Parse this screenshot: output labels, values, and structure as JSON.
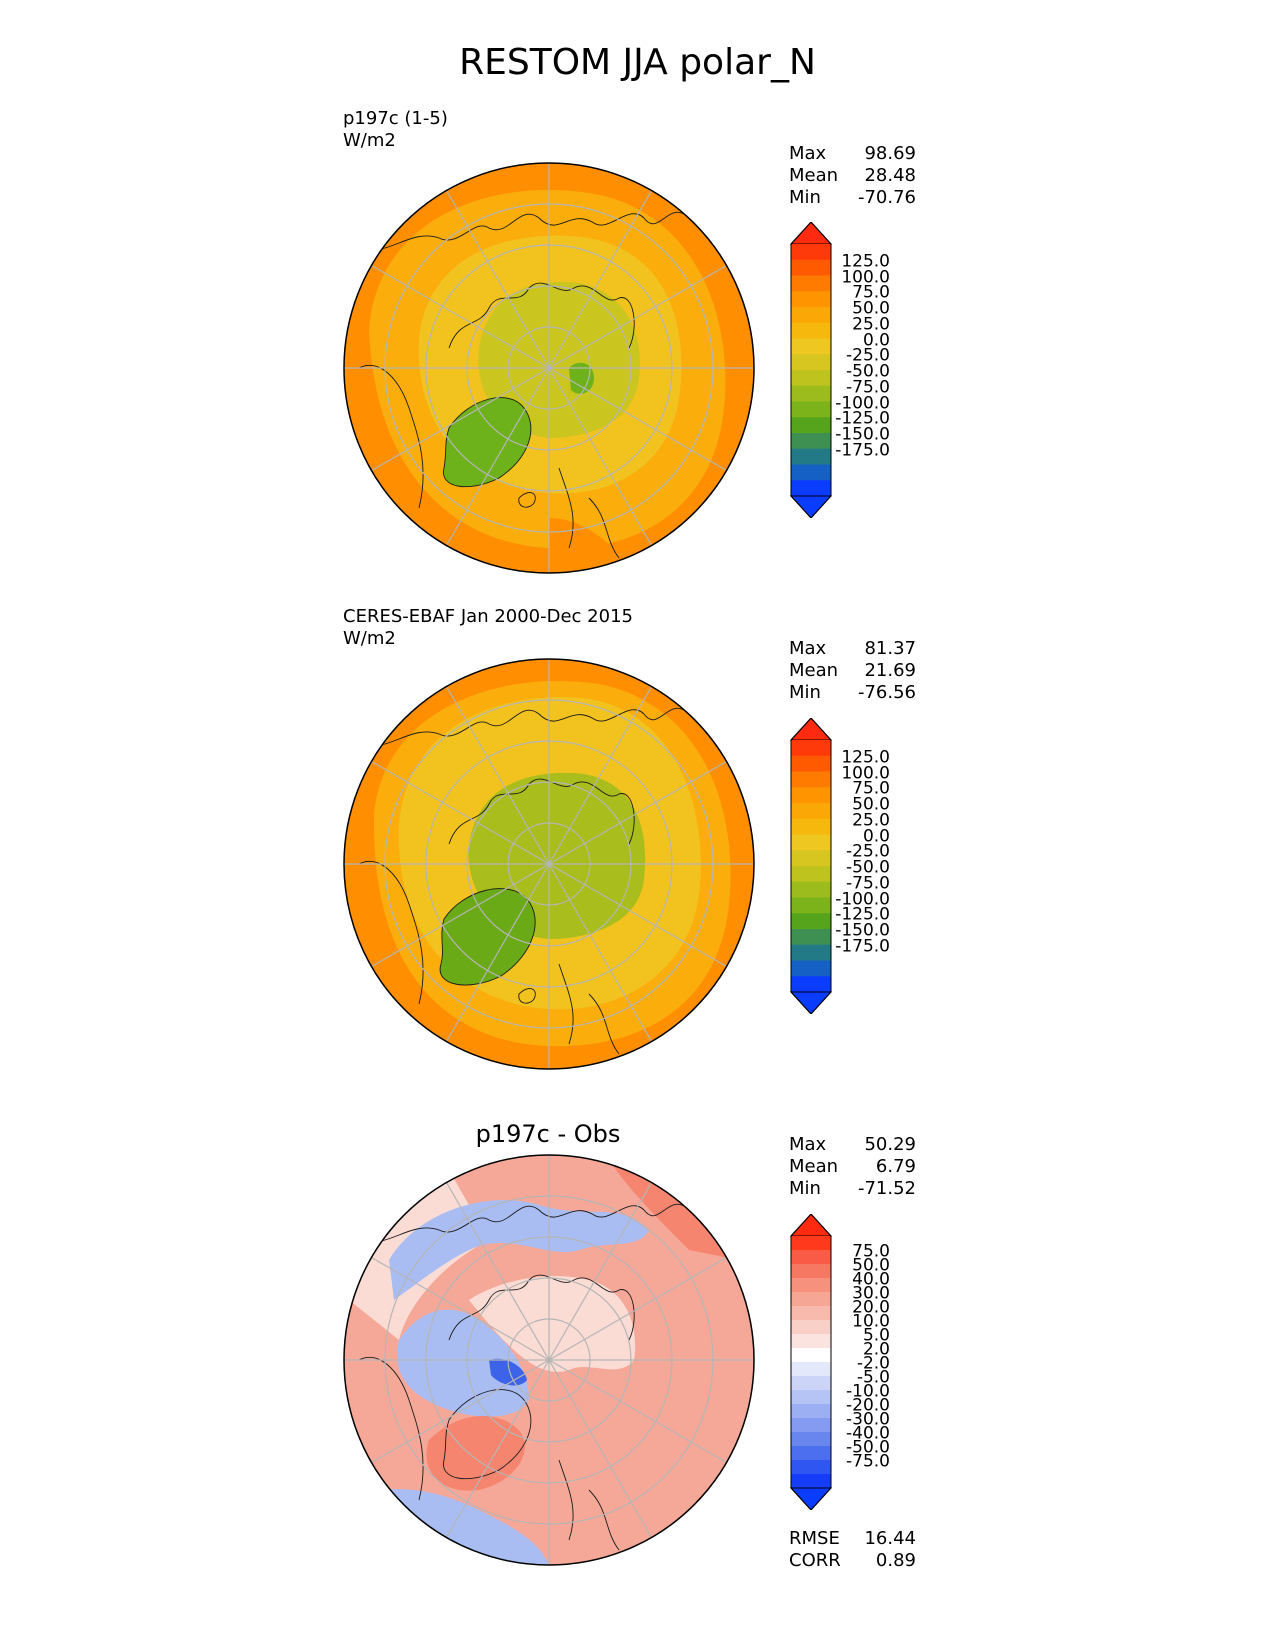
{
  "title": "RESTOM JJA polar_N",
  "panels": [
    {
      "label_line1": "p197c (1-5)",
      "label_line2": "W/m2",
      "stats": {
        "max_label": "Max",
        "max": "98.69",
        "mean_label": "Mean",
        "mean": "28.48",
        "min_label": "Min",
        "min": "-70.76"
      }
    },
    {
      "label_line1": "CERES-EBAF Jan 2000-Dec 2015",
      "label_line2": "W/m2",
      "stats": {
        "max_label": "Max",
        "max": "81.37",
        "mean_label": "Mean",
        "mean": "21.69",
        "min_label": "Min",
        "min": "-76.56"
      }
    },
    {
      "title": "p197c - Obs",
      "stats": {
        "max_label": "Max",
        "max": "50.29",
        "mean_label": "Mean",
        "mean": "6.79",
        "min_label": "Min",
        "min": "-71.52"
      },
      "metrics": {
        "rmse_label": "RMSE",
        "rmse": "16.44",
        "corr_label": "CORR",
        "corr": "0.89"
      }
    }
  ],
  "colorbars": {
    "field": {
      "ticks": [
        "125.0",
        "100.0",
        "75.0",
        "50.0",
        "25.0",
        "0.0",
        "-25.0",
        "-50.0",
        "-75.0",
        "-100.0",
        "-125.0",
        "-150.0",
        "-175.0"
      ],
      "colors": [
        "#ff3a0a",
        "#ff5a00",
        "#ff7b00",
        "#ff9300",
        "#fba705",
        "#f7b80e",
        "#eec720",
        "#d8c620",
        "#bec31e",
        "#9cbb1c",
        "#7cb31a",
        "#55a41c",
        "#3e8f52",
        "#217a85",
        "#1560c4",
        "#0a3cff"
      ],
      "over_color": "#ff2a10",
      "under_color": "#0a3cff"
    },
    "diff": {
      "ticks": [
        "75.0",
        "50.0",
        "40.0",
        "30.0",
        "20.0",
        "10.0",
        "5.0",
        "2.0",
        "-2.0",
        "-5.0",
        "-10.0",
        "-20.0",
        "-30.0",
        "-40.0",
        "-50.0",
        "-75.0"
      ],
      "colors": [
        "#ff3a1c",
        "#fa5b46",
        "#f77862",
        "#f5917c",
        "#f5a694",
        "#f7baad",
        "#f9d0c8",
        "#fbe4df",
        "#ffffff",
        "#e4e8fb",
        "#ccd5f7",
        "#b5c3f5",
        "#9caff3",
        "#849bf1",
        "#6886ee",
        "#4c6ff0",
        "#3056f2",
        "#163cf8"
      ],
      "over_color": "#ff2a10",
      "under_color": "#0a3cff"
    }
  },
  "map_colors": {
    "ocean_outer": "#ff8f00",
    "mid_band": "#fbad0c",
    "inner_band": "#f2c31f",
    "arctic_model": "#cbc51f",
    "arctic_obs": "#a9bd1d",
    "greenland_model": "#6db21a",
    "greenland_obs": "#6aaa17",
    "diff_base": "#f6a898",
    "diff_light": "#fbdcd4",
    "diff_blue": "#a9bdf3",
    "diff_deepblue": "#3d63e8",
    "diff_red": "#f6856f",
    "grid": "#b5b5b5",
    "coast": "#1a1a1a"
  }
}
